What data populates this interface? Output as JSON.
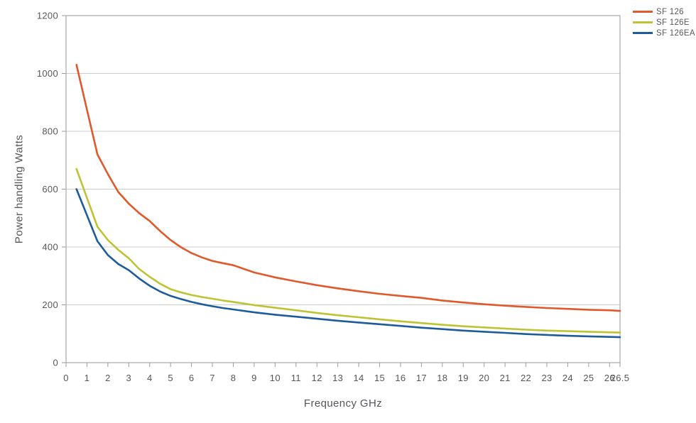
{
  "chart_data": {
    "type": "line",
    "title": "",
    "xlabel": "Frequency GHz",
    "ylabel": "Power handling Watts",
    "xlim": [
      0,
      26.5
    ],
    "ylim": [
      0,
      1200
    ],
    "x_ticks": [
      0,
      1,
      2,
      3,
      4,
      5,
      6,
      7,
      8,
      9,
      10,
      11,
      12,
      13,
      14,
      15,
      16,
      17,
      18,
      19,
      20,
      21,
      22,
      23,
      24,
      25,
      26,
      26.5
    ],
    "y_ticks": [
      0,
      200,
      400,
      600,
      800,
      1000,
      1200
    ],
    "grid": "horizontal-major",
    "legend_position": "top-right",
    "colors": {
      "gridline": "#cccccc",
      "border": "#a8a8a8",
      "tick": "#9b9b9b",
      "text": "#55565a"
    },
    "series": [
      {
        "name": "SF 126",
        "color": "#e1582b",
        "points": [
          [
            0.5,
            1030
          ],
          [
            1,
            875
          ],
          [
            1.5,
            720
          ],
          [
            2,
            652
          ],
          [
            2.5,
            590
          ],
          [
            3,
            550
          ],
          [
            3.5,
            517
          ],
          [
            4,
            490
          ],
          [
            4.5,
            455
          ],
          [
            5,
            424
          ],
          [
            5.5,
            399
          ],
          [
            6,
            379
          ],
          [
            6.5,
            364
          ],
          [
            7,
            352
          ],
          [
            7.5,
            344
          ],
          [
            8,
            337
          ],
          [
            9,
            312
          ],
          [
            10,
            295
          ],
          [
            11,
            281
          ],
          [
            12,
            268
          ],
          [
            13,
            257
          ],
          [
            14,
            247
          ],
          [
            15,
            238
          ],
          [
            16,
            231
          ],
          [
            17,
            224
          ],
          [
            18,
            215
          ],
          [
            19,
            208
          ],
          [
            20,
            202
          ],
          [
            21,
            197
          ],
          [
            22,
            193
          ],
          [
            23,
            189
          ],
          [
            24,
            186
          ],
          [
            25,
            183
          ],
          [
            26,
            181
          ],
          [
            26.5,
            179
          ]
        ]
      },
      {
        "name": "SF 126E",
        "color": "#bdc433",
        "points": [
          [
            0.5,
            670
          ],
          [
            1,
            570
          ],
          [
            1.5,
            470
          ],
          [
            2,
            424
          ],
          [
            2.5,
            390
          ],
          [
            3,
            361
          ],
          [
            3.5,
            324
          ],
          [
            4,
            297
          ],
          [
            4.5,
            273
          ],
          [
            5,
            254
          ],
          [
            5.5,
            243
          ],
          [
            6,
            234
          ],
          [
            6.5,
            227
          ],
          [
            7,
            221
          ],
          [
            7.5,
            215
          ],
          [
            8,
            210
          ],
          [
            9,
            199
          ],
          [
            10,
            190
          ],
          [
            11,
            181
          ],
          [
            12,
            172
          ],
          [
            13,
            164
          ],
          [
            14,
            157
          ],
          [
            15,
            150
          ],
          [
            16,
            143
          ],
          [
            17,
            137
          ],
          [
            18,
            131
          ],
          [
            19,
            126
          ],
          [
            20,
            122
          ],
          [
            21,
            118
          ],
          [
            22,
            114
          ],
          [
            23,
            111
          ],
          [
            24,
            109
          ],
          [
            25,
            107
          ],
          [
            26,
            105
          ],
          [
            26.5,
            104
          ]
        ]
      },
      {
        "name": "SF 126EA",
        "color": "#1d5c9c",
        "points": [
          [
            0.5,
            600
          ],
          [
            1,
            510
          ],
          [
            1.5,
            420
          ],
          [
            2,
            372
          ],
          [
            2.5,
            341
          ],
          [
            3,
            320
          ],
          [
            3.5,
            291
          ],
          [
            4,
            266
          ],
          [
            4.5,
            246
          ],
          [
            5,
            231
          ],
          [
            5.5,
            220
          ],
          [
            6,
            210
          ],
          [
            6.5,
            202
          ],
          [
            7,
            195
          ],
          [
            7.5,
            189
          ],
          [
            8,
            184
          ],
          [
            9,
            174
          ],
          [
            10,
            166
          ],
          [
            11,
            159
          ],
          [
            12,
            152
          ],
          [
            13,
            145
          ],
          [
            14,
            139
          ],
          [
            15,
            133
          ],
          [
            16,
            127
          ],
          [
            17,
            121
          ],
          [
            18,
            116
          ],
          [
            19,
            111
          ],
          [
            20,
            107
          ],
          [
            21,
            103
          ],
          [
            22,
            99
          ],
          [
            23,
            96
          ],
          [
            24,
            93
          ],
          [
            25,
            91
          ],
          [
            26,
            89
          ],
          [
            26.5,
            88
          ]
        ]
      }
    ]
  }
}
